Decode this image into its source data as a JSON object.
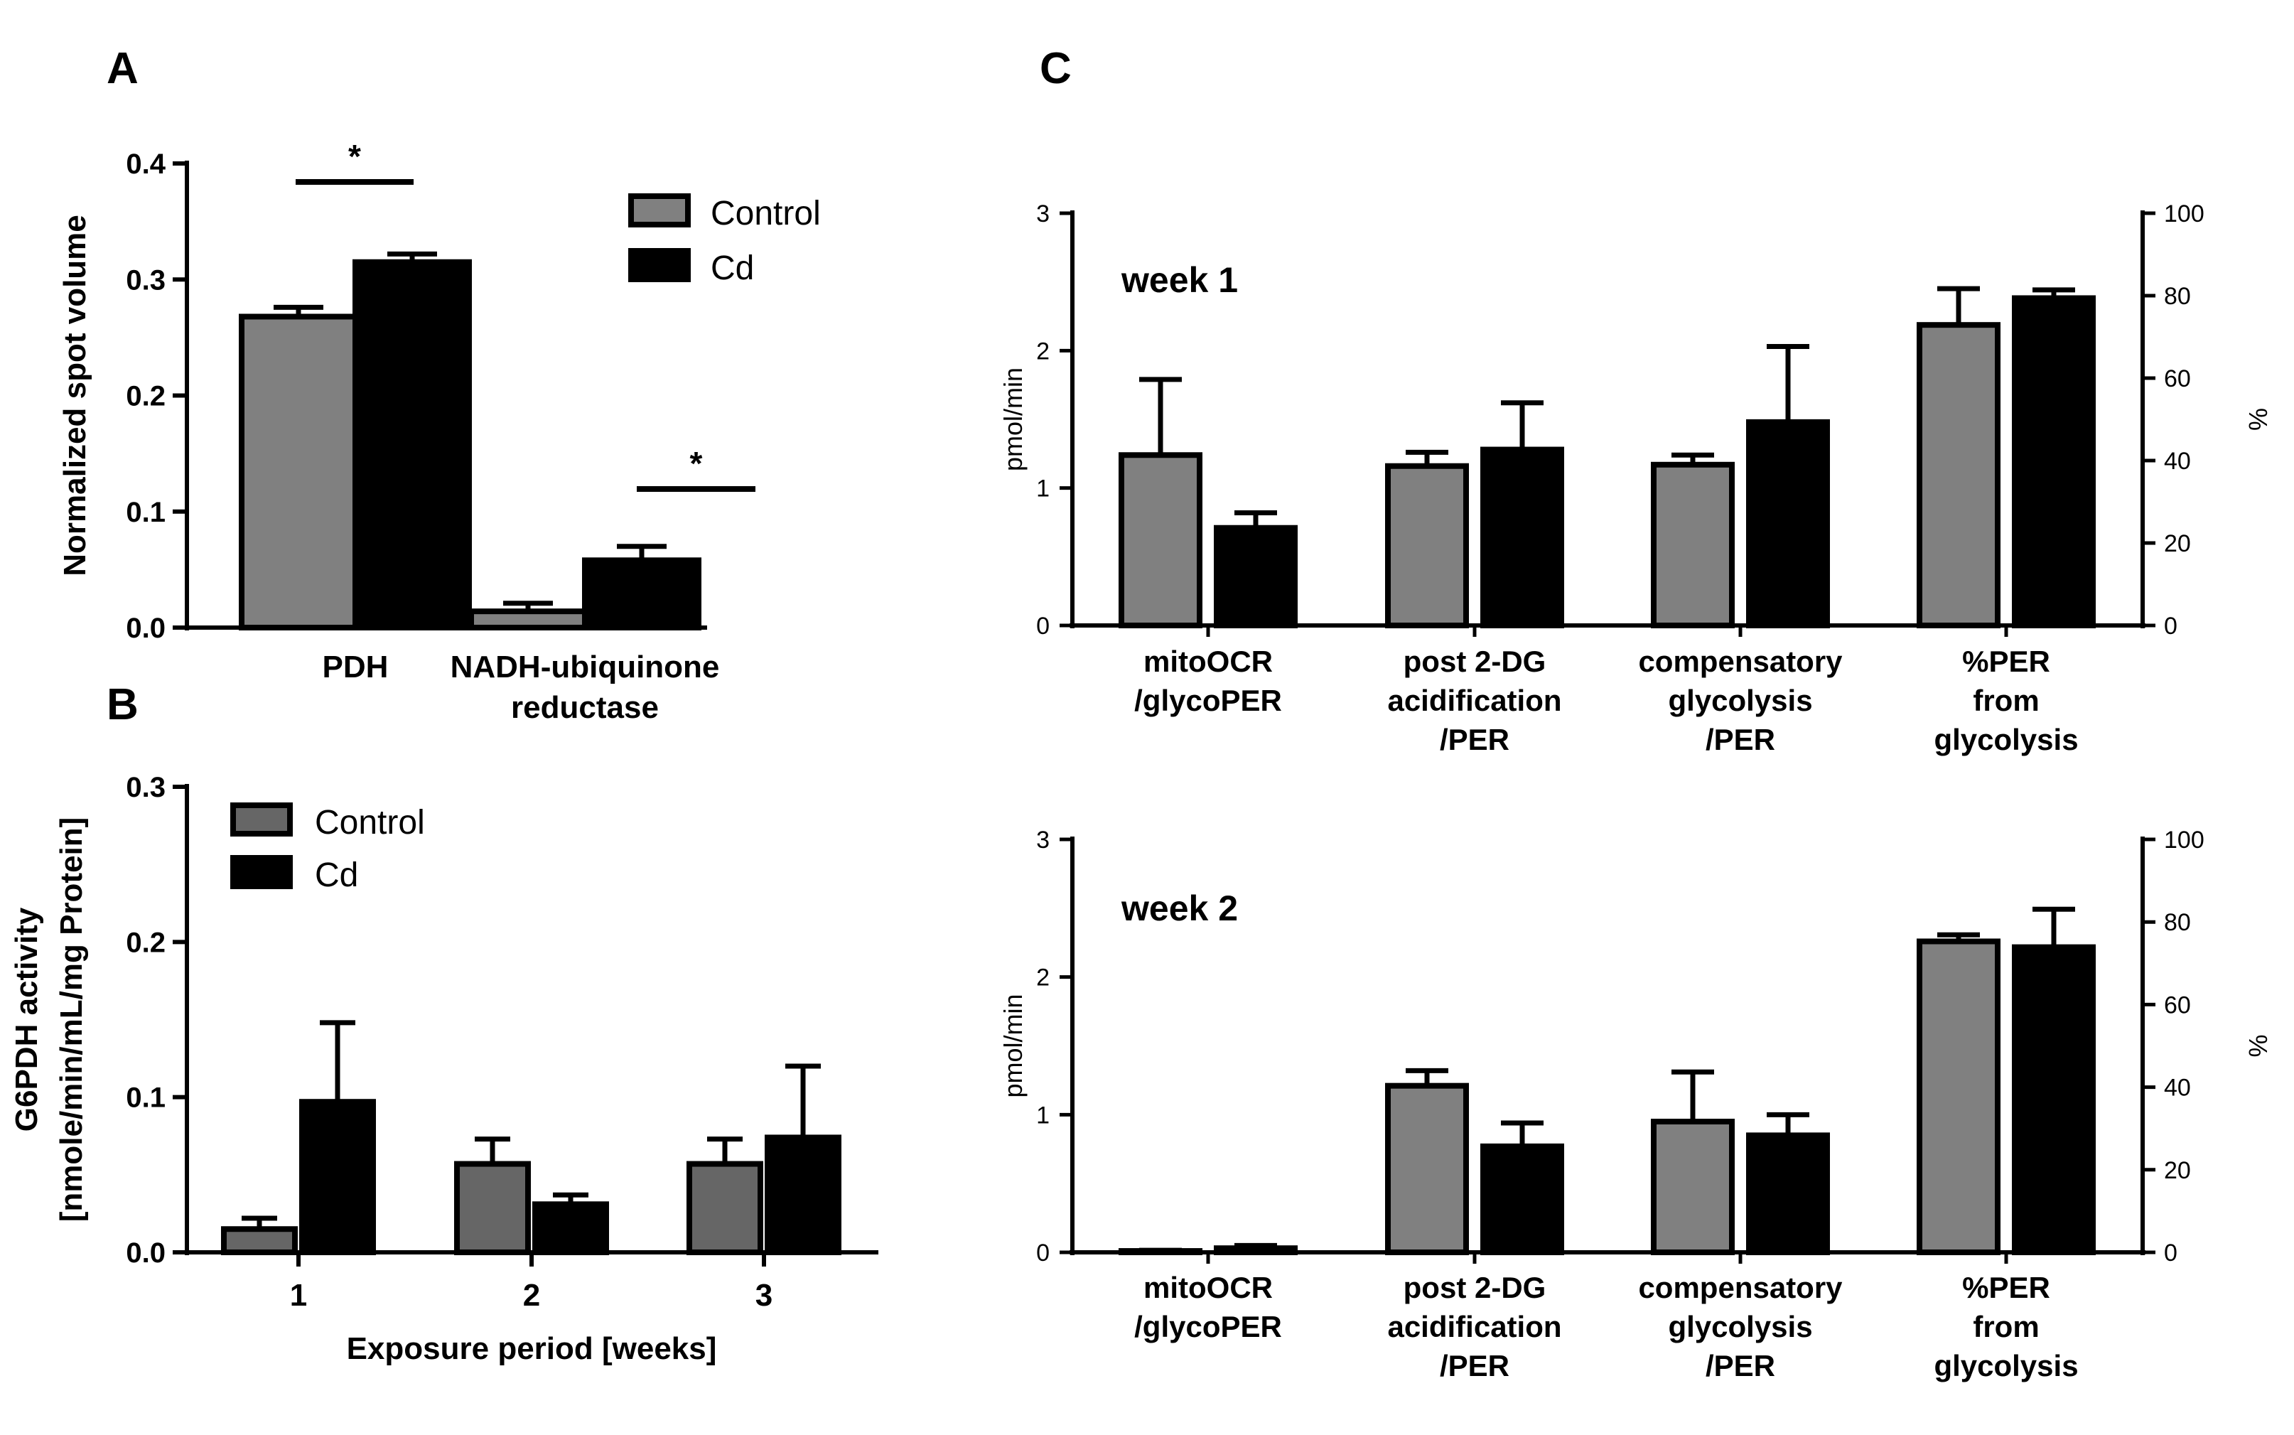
{
  "chart_data": [
    {
      "panel": "A",
      "type": "bar",
      "categories": [
        "PDH",
        "NADH-ubiquinone reductase"
      ],
      "category_label_lines": [
        [
          "PDH"
        ],
        [
          "NADH-ubiquinone",
          "reductase"
        ]
      ],
      "series": [
        {
          "name": "Control",
          "values": [
            0.268,
            0.014
          ],
          "errors": [
            0.008,
            0.007
          ],
          "color": "#808080"
        },
        {
          "name": "Cd",
          "values": [
            0.315,
            0.058
          ],
          "errors": [
            0.007,
            0.012
          ],
          "color": "#000000"
        }
      ],
      "ylabel": "Normalized spot volume",
      "ylim": [
        0,
        0.4
      ],
      "yticks": [
        "0.0",
        "0.1",
        "0.2",
        "0.3",
        "0.4"
      ],
      "significance": [
        "*",
        "*"
      ],
      "legend": [
        "Control",
        "Cd"
      ],
      "legend_position": "top-right"
    },
    {
      "panel": "B",
      "type": "bar",
      "categories": [
        "1",
        "2",
        "3"
      ],
      "series": [
        {
          "name": "Control",
          "values": [
            0.015,
            0.057,
            0.057
          ],
          "errors": [
            0.007,
            0.016,
            0.016
          ],
          "color": "#666666"
        },
        {
          "name": "Cd",
          "values": [
            0.097,
            0.031,
            0.074
          ],
          "errors": [
            0.051,
            0.006,
            0.046
          ],
          "color": "#000000"
        }
      ],
      "xlabel": "Exposure period [weeks]",
      "ylabel_lines": [
        "G6PDH activity",
        "[nmole/min/mL/mg Protein]"
      ],
      "ylim": [
        0,
        0.3
      ],
      "yticks": [
        "0.0",
        "0.1",
        "0.2",
        "0.3"
      ],
      "legend": [
        "Control",
        "Cd"
      ],
      "legend_position": "top-left"
    },
    {
      "panel": "C",
      "title": "week 1",
      "type": "bar",
      "categories": [
        "mitoOCR/glycoPER",
        "post 2-DG acidification/PER",
        "compensatory glycolysis/PER",
        "%PER from glycolysis"
      ],
      "category_label_lines": [
        [
          "mitoOCR",
          "/glycoPER"
        ],
        [
          "post 2-DG",
          "acidification",
          "/PER"
        ],
        [
          "compensatory",
          "glycolysis",
          "/PER"
        ],
        [
          "%PER",
          "from",
          "glycolysis"
        ]
      ],
      "series": [
        {
          "name": "Control",
          "values": [
            1.24,
            1.16,
            1.17,
            72.9
          ],
          "errors": [
            0.55,
            0.1,
            0.07,
            8.8
          ],
          "color": "#808080"
        },
        {
          "name": "Cd",
          "values": [
            0.71,
            1.28,
            1.48,
            79.4
          ],
          "errors": [
            0.11,
            0.34,
            0.55,
            2.0
          ],
          "color": "#000000"
        }
      ],
      "ylabel": "pmol/min",
      "ylim": [
        0,
        3
      ],
      "yticks": [
        "0",
        "1",
        "2",
        "3"
      ],
      "y2label": "%",
      "y2lim": [
        0,
        100
      ],
      "y2ticks": [
        "0",
        "20",
        "40",
        "60",
        "80",
        "100"
      ],
      "right_axis_categories": [
        "%PER from glycolysis"
      ]
    },
    {
      "panel": "C",
      "title": "week 2",
      "type": "bar",
      "categories": [
        "mitoOCR/glycoPER",
        "post 2-DG acidification/PER",
        "compensatory glycolysis/PER",
        "%PER from glycolysis"
      ],
      "category_label_lines": [
        [
          "mitoOCR",
          "/glycoPER"
        ],
        [
          "post 2-DG",
          "acidification",
          "/PER"
        ],
        [
          "compensatory",
          "glycolysis",
          "/PER"
        ],
        [
          "%PER",
          "from",
          "glycolysis"
        ]
      ],
      "series": [
        {
          "name": "Control",
          "values": [
            0.01,
            1.21,
            0.95,
            75.3
          ],
          "errors": [
            0.005,
            0.11,
            0.36,
            1.6
          ],
          "color": "#808080"
        },
        {
          "name": "Cd",
          "values": [
            0.03,
            0.77,
            0.85,
            73.9
          ],
          "errors": [
            0.02,
            0.17,
            0.15,
            9.2
          ],
          "color": "#000000"
        }
      ],
      "ylabel": "pmol/min",
      "ylim": [
        0,
        3
      ],
      "yticks": [
        "0",
        "1",
        "2",
        "3"
      ],
      "y2label": "%",
      "y2lim": [
        0,
        100
      ],
      "y2ticks": [
        "0",
        "20",
        "40",
        "60",
        "80",
        "100"
      ],
      "right_axis_categories": [
        "%PER from glycolysis"
      ]
    }
  ],
  "panel_labels": {
    "A": "A",
    "B": "B",
    "C": "C"
  }
}
